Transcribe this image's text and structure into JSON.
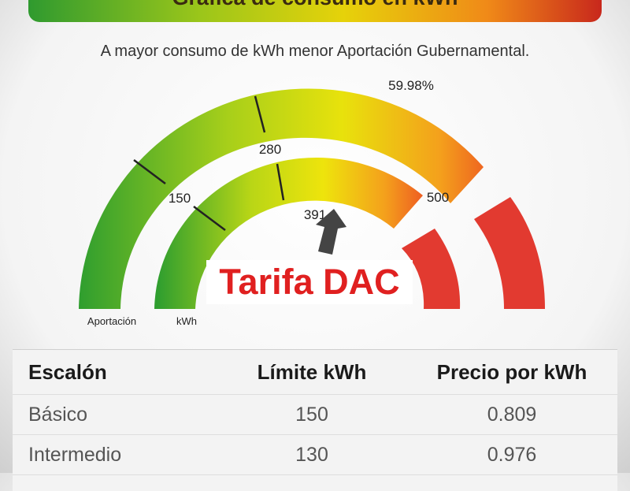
{
  "banner_title": "Gráfica de consumo en kWh",
  "subtitle": "A mayor consumo de kWh menor Aportación Gubernamental.",
  "gauge": {
    "percent_label": "59.98%",
    "outer_labels": [
      "280",
      "500"
    ],
    "inner_labels": [
      "150"
    ],
    "current_value": "391",
    "outer_arc_caption": "Aportación",
    "inner_arc_caption": "kWh",
    "colors": {
      "green": "#2f9e2f",
      "yellow": "#e7e00c",
      "orange": "#f08a1c",
      "red": "#e23a30",
      "arrow": "#444444"
    }
  },
  "overlay_label": "Tarifa DAC",
  "table": {
    "headers": [
      "Escalón",
      "Límite kWh",
      "Precio por kWh"
    ],
    "rows": [
      [
        "Básico",
        "150",
        "0.809"
      ],
      [
        "Intermedio",
        "130",
        "0.976"
      ]
    ]
  }
}
